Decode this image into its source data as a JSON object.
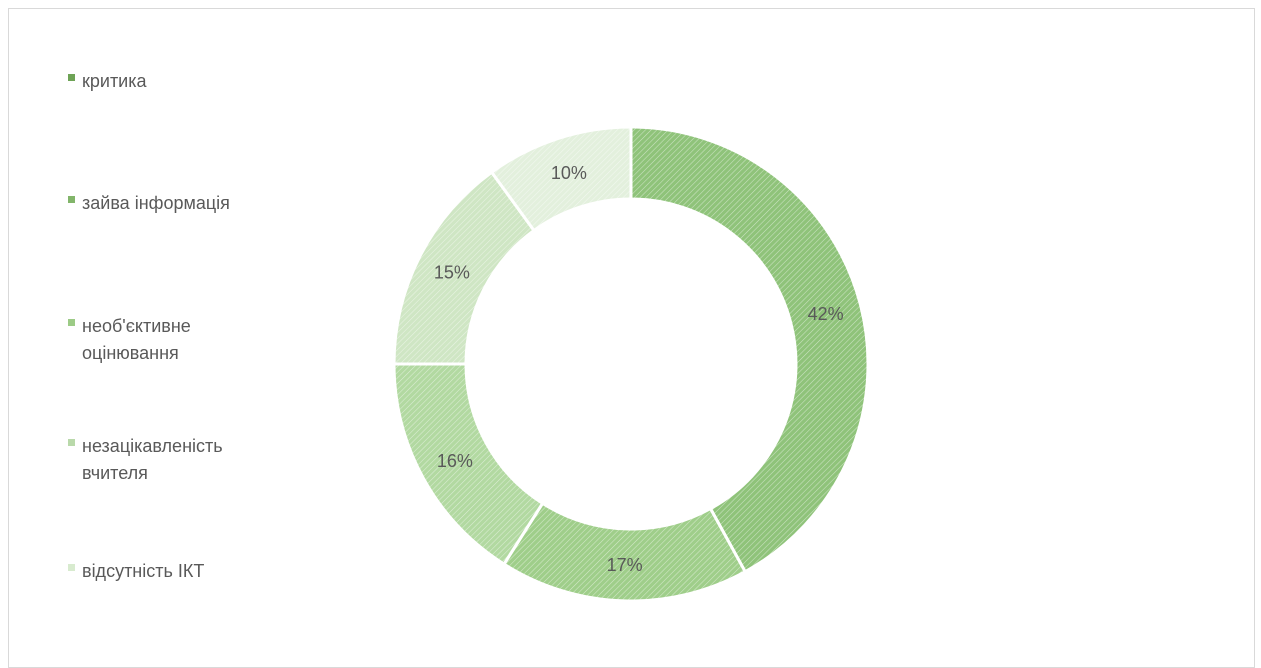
{
  "chart_data": {
    "type": "pie",
    "variant": "donut",
    "series": [
      {
        "name": "критика",
        "value": 42,
        "label": "42%",
        "color": "#8fc37a"
      },
      {
        "name": "зайва інформація",
        "value": 17,
        "label": "17%",
        "color": "#9fce8a"
      },
      {
        "name": "необ'єктивне оцінювання",
        "value": 16,
        "label": "16%",
        "color": "#b2d9a1"
      },
      {
        "name": "незацікавленість вчителя",
        "value": 15,
        "label": "15%",
        "color": "#cfe6c4"
      },
      {
        "name": "відсутність ІКТ",
        "value": 10,
        "label": "10%",
        "color": "#e3f0dd"
      }
    ],
    "legend": {
      "placement": "left",
      "items": [
        {
          "label": "критика",
          "color": "#6ea356"
        },
        {
          "label": "зайва інформація",
          "color": "#82b56a"
        },
        {
          "label": "необ'єктивне оцінювання",
          "color": "#9ccb86"
        },
        {
          "label": "незацікавленість вчителя",
          "color": "#b9d9aa"
        },
        {
          "label": "відсутність ІКТ",
          "color": "#d8ebcf"
        }
      ]
    },
    "pattern": "hatched"
  }
}
